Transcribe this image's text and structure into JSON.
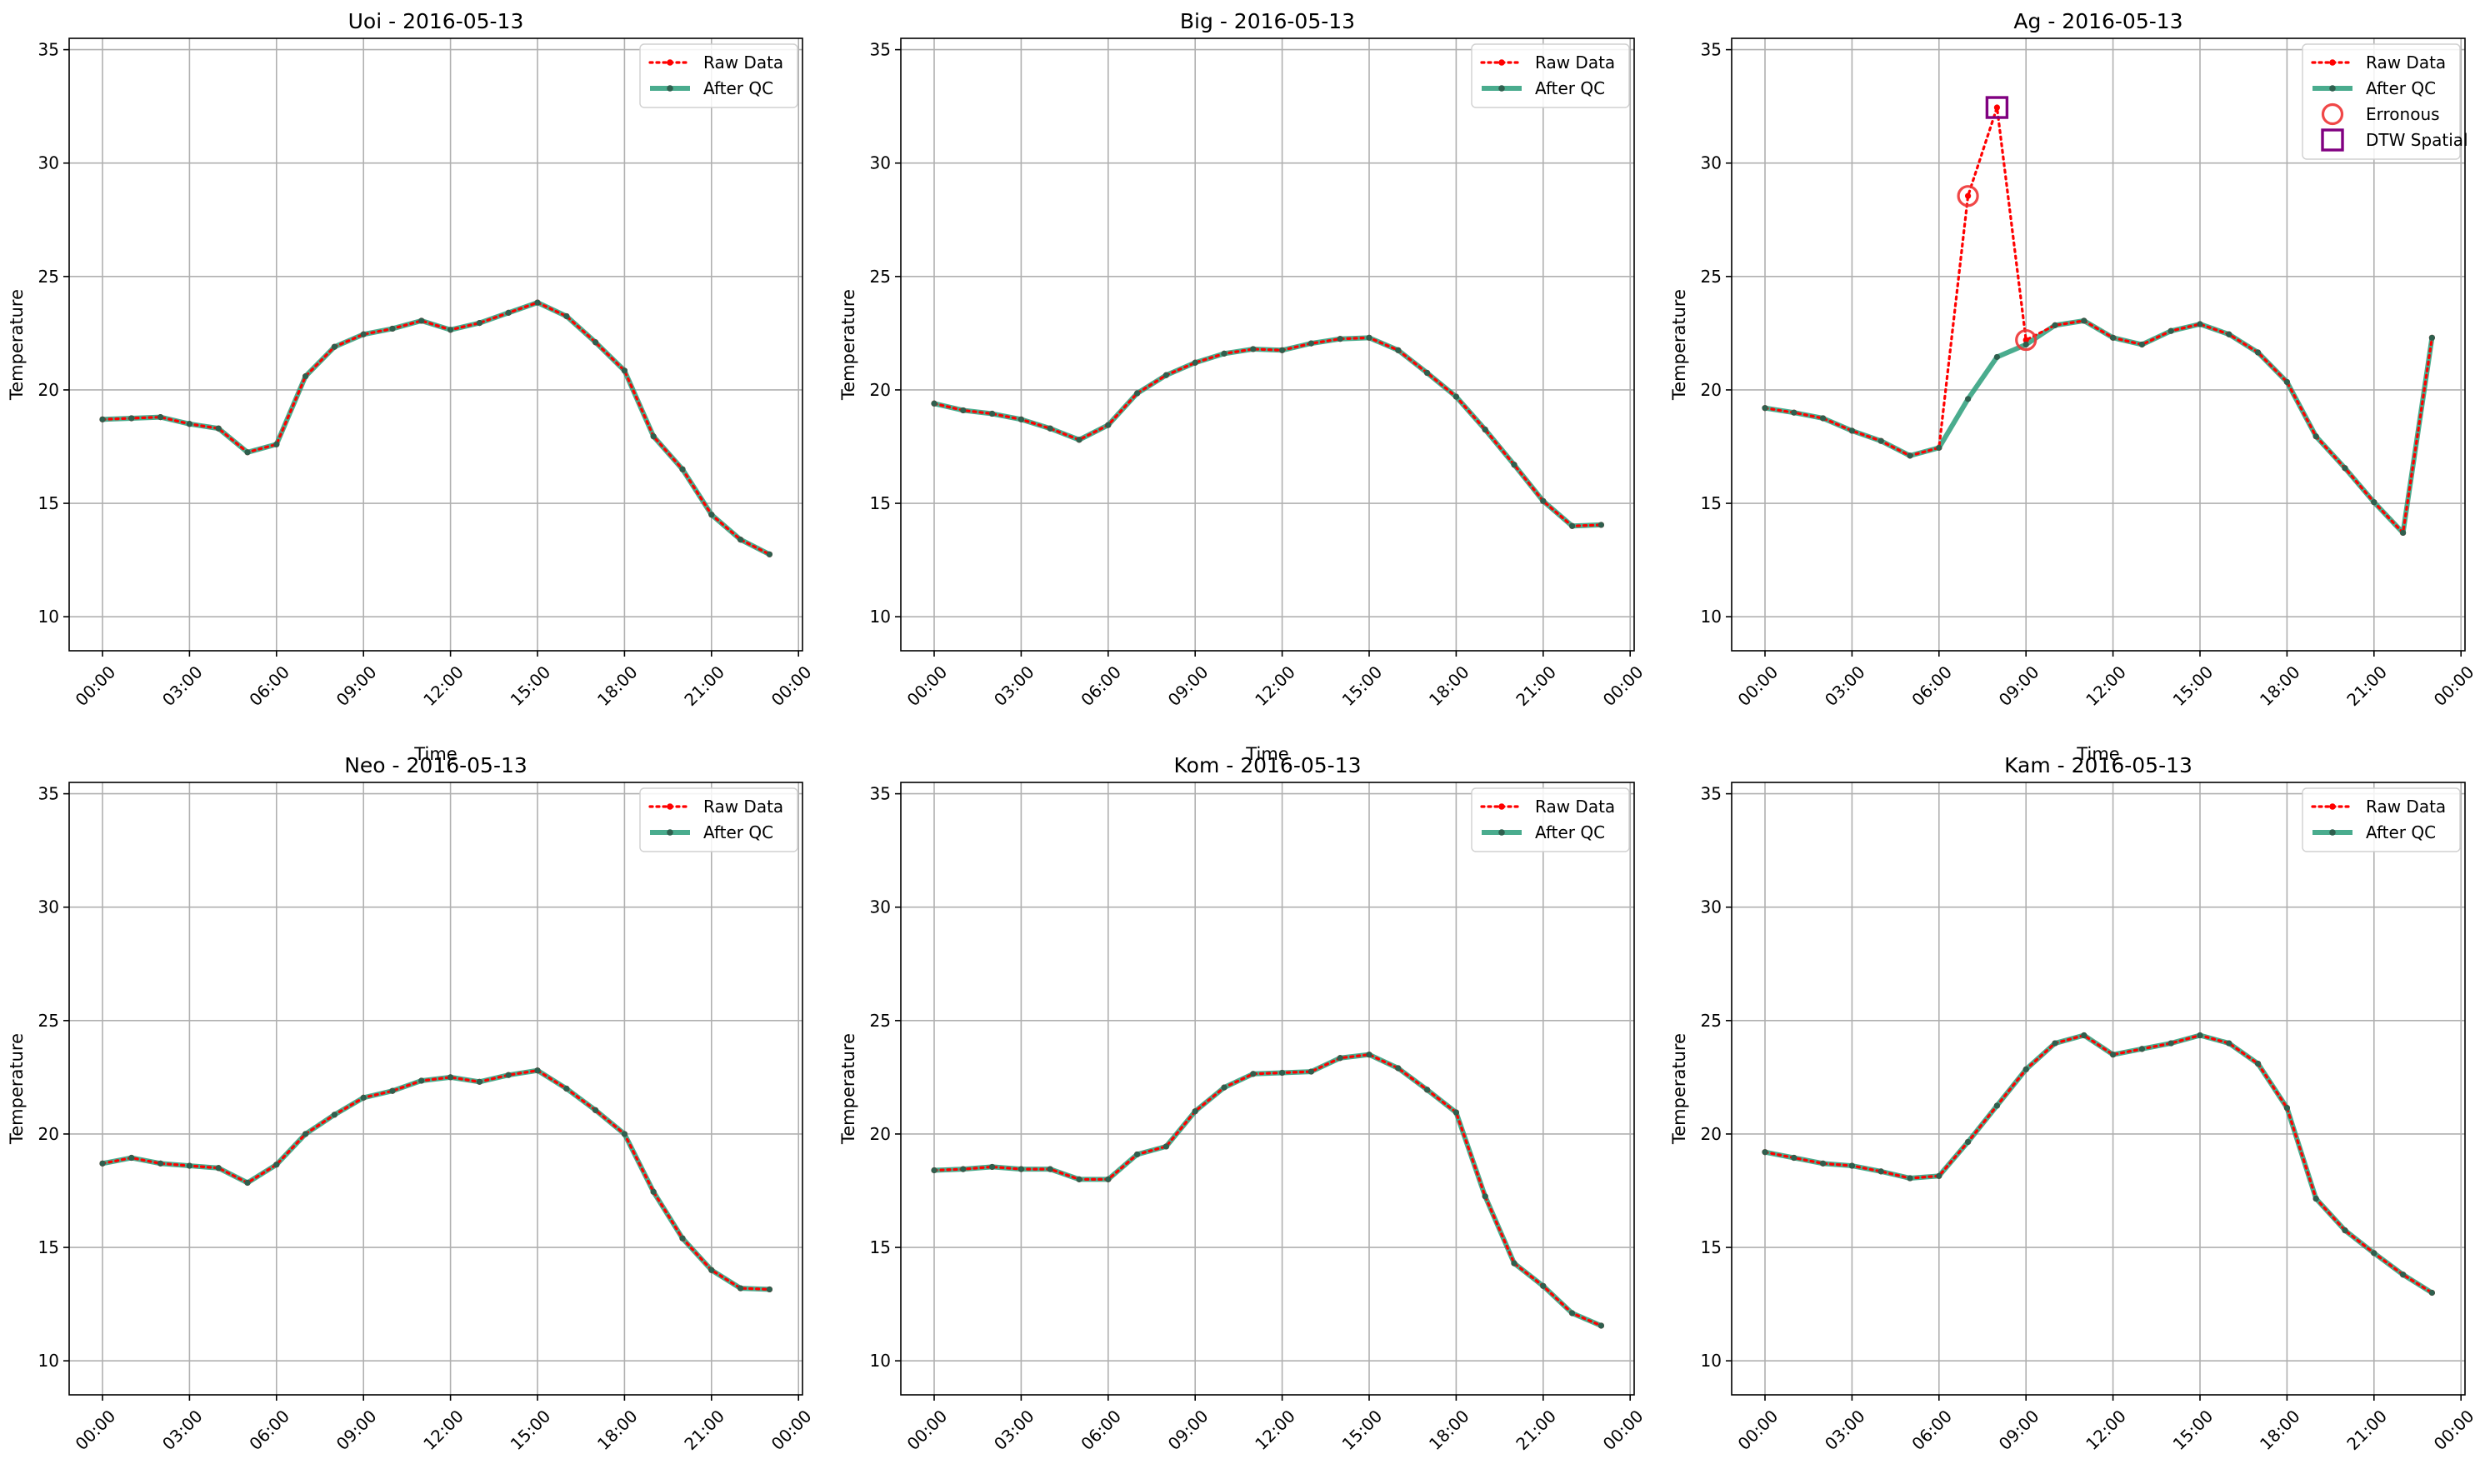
{
  "chart_data": [
    {
      "type": "line",
      "title": "Uoi - 2016-05-13",
      "xlabel": "Time",
      "ylabel": "Temperature",
      "x_ticks": [
        "00:00",
        "03:00",
        "06:00",
        "09:00",
        "12:00",
        "15:00",
        "18:00",
        "21:00",
        "00:00"
      ],
      "y_ticks": [
        10,
        15,
        20,
        25,
        30,
        35
      ],
      "ylim": [
        8.5,
        35.5
      ],
      "grid": true,
      "legend_position": "upper-right",
      "legend": [
        "Raw Data",
        "After QC"
      ],
      "x_hours": [
        0,
        1,
        2,
        3,
        4,
        5,
        6,
        7,
        8,
        9,
        10,
        11,
        12,
        13,
        14,
        15,
        16,
        17,
        18,
        19,
        20,
        21,
        22,
        23
      ],
      "series": [
        {
          "name": "Raw Data",
          "values": [
            18.7,
            18.75,
            18.8,
            18.5,
            18.3,
            17.25,
            17.6,
            20.6,
            21.9,
            22.45,
            22.7,
            23.05,
            22.65,
            22.95,
            23.4,
            23.85,
            23.25,
            22.1,
            20.85,
            17.95,
            16.5,
            14.5,
            13.4,
            12.75
          ]
        },
        {
          "name": "After QC",
          "values": [
            18.7,
            18.75,
            18.8,
            18.5,
            18.3,
            17.25,
            17.6,
            20.6,
            21.9,
            22.45,
            22.7,
            23.05,
            22.65,
            22.95,
            23.4,
            23.85,
            23.25,
            22.1,
            20.85,
            17.95,
            16.5,
            14.5,
            13.4,
            12.75
          ]
        }
      ]
    },
    {
      "type": "line",
      "title": "Big - 2016-05-13",
      "xlabel": "Time",
      "ylabel": "Temperature",
      "x_ticks": [
        "00:00",
        "03:00",
        "06:00",
        "09:00",
        "12:00",
        "15:00",
        "18:00",
        "21:00",
        "00:00"
      ],
      "y_ticks": [
        10,
        15,
        20,
        25,
        30,
        35
      ],
      "ylim": [
        8.5,
        35.5
      ],
      "grid": true,
      "legend_position": "upper-right",
      "legend": [
        "Raw Data",
        "After QC"
      ],
      "x_hours": [
        0,
        1,
        2,
        3,
        4,
        5,
        6,
        7,
        8,
        9,
        10,
        11,
        12,
        13,
        14,
        15,
        16,
        17,
        18,
        19,
        20,
        21,
        22,
        23
      ],
      "series": [
        {
          "name": "Raw Data",
          "values": [
            19.4,
            19.1,
            18.95,
            18.7,
            18.3,
            17.8,
            18.45,
            19.85,
            20.65,
            21.2,
            21.6,
            21.8,
            21.75,
            22.05,
            22.25,
            22.3,
            21.75,
            20.75,
            19.7,
            18.25,
            16.7,
            15.1,
            14.0,
            14.05
          ]
        },
        {
          "name": "After QC",
          "values": [
            19.4,
            19.1,
            18.95,
            18.7,
            18.3,
            17.8,
            18.45,
            19.85,
            20.65,
            21.2,
            21.6,
            21.8,
            21.75,
            22.05,
            22.25,
            22.3,
            21.75,
            20.75,
            19.7,
            18.25,
            16.7,
            15.1,
            14.0,
            14.05
          ]
        }
      ]
    },
    {
      "type": "line",
      "title": "Ag - 2016-05-13",
      "xlabel": "Time",
      "ylabel": "Temperature",
      "x_ticks": [
        "00:00",
        "03:00",
        "06:00",
        "09:00",
        "12:00",
        "15:00",
        "18:00",
        "21:00",
        "00:00"
      ],
      "y_ticks": [
        10,
        15,
        20,
        25,
        30,
        35
      ],
      "ylim": [
        8.5,
        35.5
      ],
      "grid": true,
      "legend_position": "upper-right",
      "legend": [
        "Raw Data",
        "After QC",
        "Erronous",
        "DTW Spatial"
      ],
      "x_hours": [
        0,
        1,
        2,
        3,
        4,
        5,
        6,
        7,
        8,
        9,
        10,
        11,
        12,
        13,
        14,
        15,
        16,
        17,
        18,
        19,
        20,
        21,
        22,
        23
      ],
      "series": [
        {
          "name": "Raw Data",
          "values": [
            19.2,
            19.0,
            18.75,
            18.2,
            17.75,
            17.1,
            17.45,
            28.55,
            32.45,
            22.2,
            22.85,
            23.05,
            22.3,
            22.0,
            22.6,
            22.9,
            22.45,
            21.65,
            20.35,
            17.95,
            16.55,
            15.05,
            13.7,
            22.3
          ]
        },
        {
          "name": "After QC",
          "values": [
            19.2,
            19.0,
            18.75,
            18.2,
            17.75,
            17.1,
            17.45,
            19.6,
            21.45,
            22.0,
            22.85,
            23.05,
            22.3,
            22.0,
            22.6,
            22.9,
            22.45,
            21.65,
            20.35,
            17.95,
            16.55,
            15.05,
            13.7,
            22.3
          ]
        }
      ],
      "erroneous_points": [
        {
          "x_hour": 7,
          "value": 28.55
        },
        {
          "x_hour": 9,
          "value": 22.2
        }
      ],
      "dtw_spatial_points": [
        {
          "x_hour": 8,
          "value": 32.45
        }
      ]
    },
    {
      "type": "line",
      "title": "Neo - 2016-05-13",
      "xlabel": "Time",
      "ylabel": "Temperature",
      "x_ticks": [
        "00:00",
        "03:00",
        "06:00",
        "09:00",
        "12:00",
        "15:00",
        "18:00",
        "21:00",
        "00:00"
      ],
      "y_ticks": [
        10,
        15,
        20,
        25,
        30,
        35
      ],
      "ylim": [
        8.5,
        35.5
      ],
      "grid": true,
      "legend_position": "upper-right",
      "legend": [
        "Raw Data",
        "After QC"
      ],
      "x_hours": [
        0,
        1,
        2,
        3,
        4,
        5,
        6,
        7,
        8,
        9,
        10,
        11,
        12,
        13,
        14,
        15,
        16,
        17,
        18,
        19,
        20,
        21,
        22,
        23
      ],
      "series": [
        {
          "name": "Raw Data",
          "values": [
            18.7,
            18.95,
            18.7,
            18.6,
            18.5,
            17.85,
            18.65,
            20.0,
            20.85,
            21.6,
            21.9,
            22.35,
            22.5,
            22.3,
            22.6,
            22.8,
            22.0,
            21.05,
            20.0,
            17.45,
            15.4,
            14.0,
            13.2,
            13.15
          ]
        },
        {
          "name": "After QC",
          "values": [
            18.7,
            18.95,
            18.7,
            18.6,
            18.5,
            17.85,
            18.65,
            20.0,
            20.85,
            21.6,
            21.9,
            22.35,
            22.5,
            22.3,
            22.6,
            22.8,
            22.0,
            21.05,
            20.0,
            17.45,
            15.4,
            14.0,
            13.2,
            13.15
          ]
        }
      ]
    },
    {
      "type": "line",
      "title": "Kom - 2016-05-13",
      "xlabel": "Time",
      "ylabel": "Temperature",
      "x_ticks": [
        "00:00",
        "03:00",
        "06:00",
        "09:00",
        "12:00",
        "15:00",
        "18:00",
        "21:00",
        "00:00"
      ],
      "y_ticks": [
        10,
        15,
        20,
        25,
        30,
        35
      ],
      "ylim": [
        8.5,
        35.5
      ],
      "grid": true,
      "legend_position": "upper-right",
      "legend": [
        "Raw Data",
        "After QC"
      ],
      "x_hours": [
        0,
        1,
        2,
        3,
        4,
        5,
        6,
        7,
        8,
        9,
        10,
        11,
        12,
        13,
        14,
        15,
        16,
        17,
        18,
        19,
        20,
        21,
        22,
        23
      ],
      "series": [
        {
          "name": "Raw Data",
          "values": [
            18.4,
            18.45,
            18.55,
            18.45,
            18.45,
            18.0,
            18.0,
            19.1,
            19.45,
            21.0,
            22.05,
            22.65,
            22.7,
            22.75,
            23.35,
            23.5,
            22.9,
            21.95,
            20.95,
            17.25,
            14.3,
            13.3,
            12.1,
            11.55
          ]
        },
        {
          "name": "After QC",
          "values": [
            18.4,
            18.45,
            18.55,
            18.45,
            18.45,
            18.0,
            18.0,
            19.1,
            19.45,
            21.0,
            22.05,
            22.65,
            22.7,
            22.75,
            23.35,
            23.5,
            22.9,
            21.95,
            20.95,
            17.25,
            14.3,
            13.3,
            12.1,
            11.55
          ]
        }
      ]
    },
    {
      "type": "line",
      "title": "Kam - 2016-05-13",
      "xlabel": "Time",
      "ylabel": "Temperature",
      "x_ticks": [
        "00:00",
        "03:00",
        "06:00",
        "09:00",
        "12:00",
        "15:00",
        "18:00",
        "21:00",
        "00:00"
      ],
      "y_ticks": [
        10,
        15,
        20,
        25,
        30,
        35
      ],
      "ylim": [
        8.5,
        35.5
      ],
      "grid": true,
      "legend_position": "upper-right",
      "legend": [
        "Raw Data",
        "After QC"
      ],
      "x_hours": [
        0,
        1,
        2,
        3,
        4,
        5,
        6,
        7,
        8,
        9,
        10,
        11,
        12,
        13,
        14,
        15,
        16,
        17,
        18,
        19,
        20,
        21,
        22,
        23
      ],
      "series": [
        {
          "name": "Raw Data",
          "values": [
            19.2,
            18.95,
            18.7,
            18.6,
            18.35,
            18.05,
            18.15,
            19.65,
            21.25,
            22.85,
            24.0,
            24.35,
            23.5,
            23.75,
            24.0,
            24.35,
            24.0,
            23.1,
            21.15,
            17.15,
            15.75,
            14.75,
            13.8,
            13.0
          ]
        },
        {
          "name": "After QC",
          "values": [
            19.2,
            18.95,
            18.7,
            18.6,
            18.35,
            18.05,
            18.15,
            19.65,
            21.25,
            22.85,
            24.0,
            24.35,
            23.5,
            23.75,
            24.0,
            24.35,
            24.0,
            23.1,
            21.15,
            17.15,
            15.75,
            14.75,
            13.8,
            13.0
          ]
        }
      ]
    }
  ],
  "colors": {
    "raw_data": "#ff0000",
    "after_qc": "#2a9d7a",
    "after_qc_markers": "#2f5f4e",
    "erroneous": "#ee3333",
    "dtw_spatial": "#800080",
    "grid": "#b0b0b0"
  }
}
